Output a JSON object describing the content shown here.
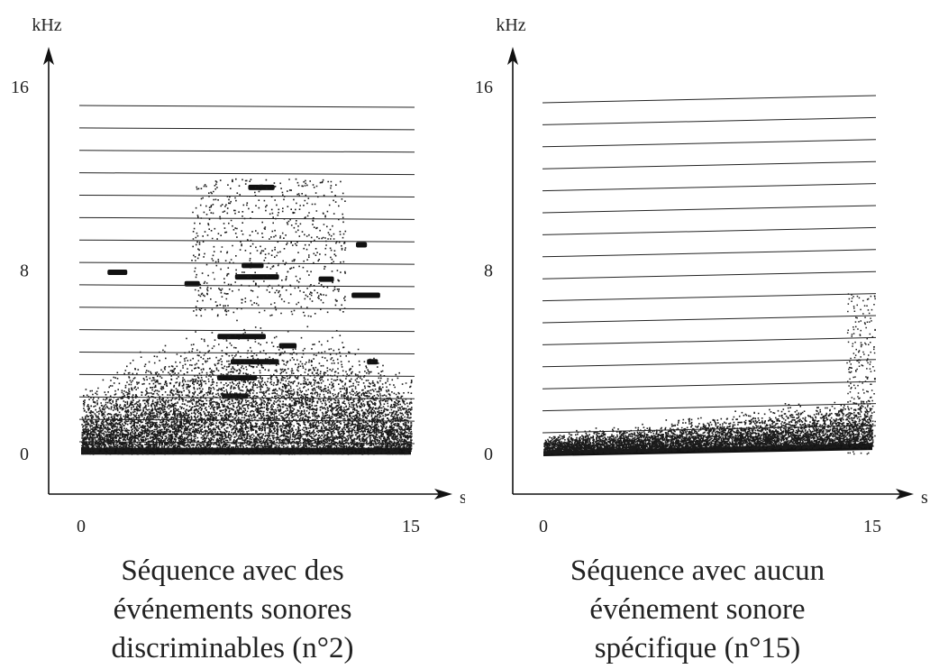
{
  "chart_data": [
    {
      "type": "spectrogram",
      "y_unit": "kHz",
      "x_unit": "s",
      "y_ticks": [
        "16",
        "8",
        "0"
      ],
      "x_ticks": [
        "0",
        "15"
      ],
      "ylim": [
        0,
        16
      ],
      "xlim": [
        0,
        15
      ],
      "horizontal_reference_lines": 16,
      "caption": [
        "Séquence avec des",
        "événements sonores",
        "discriminables (n°2)"
      ],
      "energy_profile": "dense broadband energy from 0 to about 6 kHz across the sequence, with distinct tonal events between 2 and 12 kHz"
    },
    {
      "type": "spectrogram",
      "y_unit": "kHz",
      "x_unit": "s",
      "y_ticks": [
        "16",
        "8",
        "0"
      ],
      "x_ticks": [
        "0",
        "15"
      ],
      "ylim": [
        0,
        16
      ],
      "xlim": [
        0,
        15
      ],
      "horizontal_reference_lines": 16,
      "caption": [
        "Séquence avec aucun",
        "événement sonore",
        "spécifique (n°15)"
      ],
      "energy_profile": "low-frequency energy mostly below 2 kHz, rising slightly toward the end of the sequence, with no distinct tonal events"
    }
  ]
}
